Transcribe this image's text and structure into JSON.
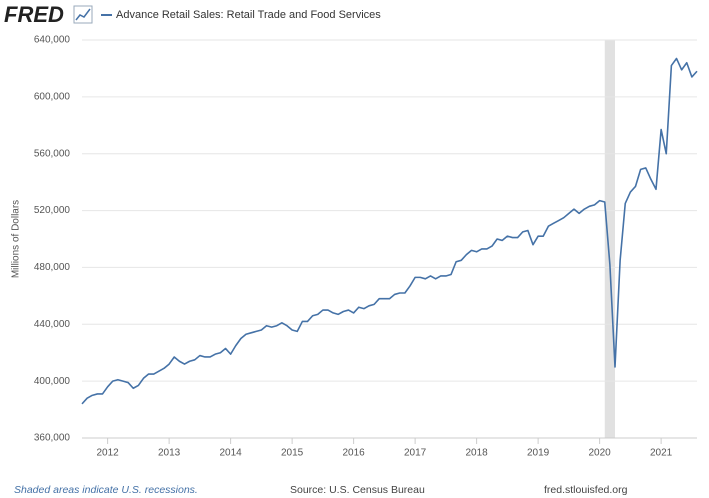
{
  "chart_data": {
    "type": "line",
    "logo": "FRED",
    "ylabel": "Millions of Dollars",
    "recession_note": "Shaded areas indicate U.S. recessions.",
    "source": "Source: U.S. Census Bureau",
    "site": "fred.stlouisfed.org",
    "grid": true,
    "recessions": [
      [
        "2020-02",
        "2020-04"
      ]
    ],
    "recession_color": "#e1e1e1",
    "xlim": [
      "2011-08",
      "2021-08"
    ],
    "xticks": [
      2012,
      2013,
      2014,
      2015,
      2016,
      2017,
      2018,
      2019,
      2020,
      2021
    ],
    "ylim": [
      360000,
      640000
    ],
    "yticks": [
      {
        "value": 360000,
        "label": "360,000"
      },
      {
        "value": 400000,
        "label": "400,000"
      },
      {
        "value": 440000,
        "label": "440,000"
      },
      {
        "value": 480000,
        "label": "480,000"
      },
      {
        "value": 520000,
        "label": "520,000"
      },
      {
        "value": 560000,
        "label": "560,000"
      },
      {
        "value": 600000,
        "label": "600,000"
      },
      {
        "value": 640000,
        "label": "640,000"
      }
    ],
    "x": [
      "2011-08",
      "2011-09",
      "2011-10",
      "2011-11",
      "2011-12",
      "2012-01",
      "2012-02",
      "2012-03",
      "2012-04",
      "2012-05",
      "2012-06",
      "2012-07",
      "2012-08",
      "2012-09",
      "2012-10",
      "2012-11",
      "2012-12",
      "2013-01",
      "2013-02",
      "2013-03",
      "2013-04",
      "2013-05",
      "2013-06",
      "2013-07",
      "2013-08",
      "2013-09",
      "2013-10",
      "2013-11",
      "2013-12",
      "2014-01",
      "2014-02",
      "2014-03",
      "2014-04",
      "2014-05",
      "2014-06",
      "2014-07",
      "2014-08",
      "2014-09",
      "2014-10",
      "2014-11",
      "2014-12",
      "2015-01",
      "2015-02",
      "2015-03",
      "2015-04",
      "2015-05",
      "2015-06",
      "2015-07",
      "2015-08",
      "2015-09",
      "2015-10",
      "2015-11",
      "2015-12",
      "2016-01",
      "2016-02",
      "2016-03",
      "2016-04",
      "2016-05",
      "2016-06",
      "2016-07",
      "2016-08",
      "2016-09",
      "2016-10",
      "2016-11",
      "2016-12",
      "2017-01",
      "2017-02",
      "2017-03",
      "2017-04",
      "2017-05",
      "2017-06",
      "2017-07",
      "2017-08",
      "2017-09",
      "2017-10",
      "2017-11",
      "2017-12",
      "2018-01",
      "2018-02",
      "2018-03",
      "2018-04",
      "2018-05",
      "2018-06",
      "2018-07",
      "2018-08",
      "2018-09",
      "2018-10",
      "2018-11",
      "2018-12",
      "2019-01",
      "2019-02",
      "2019-03",
      "2019-04",
      "2019-05",
      "2019-06",
      "2019-07",
      "2019-08",
      "2019-09",
      "2019-10",
      "2019-11",
      "2019-12",
      "2020-01",
      "2020-02",
      "2020-03",
      "2020-04",
      "2020-05",
      "2020-06",
      "2020-07",
      "2020-08",
      "2020-09",
      "2020-10",
      "2020-11",
      "2020-12",
      "2021-01",
      "2021-02",
      "2021-03",
      "2021-04",
      "2021-05",
      "2021-06",
      "2021-07",
      "2021-08"
    ],
    "series": [
      {
        "name": "Advance Retail Sales: Retail Trade and Food Services",
        "color": "#4572a7",
        "values": [
          384000,
          388000,
          390000,
          391000,
          391000,
          396000,
          400000,
          401000,
          400000,
          399000,
          395000,
          397000,
          402000,
          405000,
          405000,
          407000,
          409000,
          412000,
          417000,
          414000,
          412000,
          414000,
          415000,
          418000,
          417000,
          417000,
          419000,
          420000,
          423000,
          419000,
          425000,
          430000,
          433000,
          434000,
          435000,
          436000,
          439000,
          438000,
          439000,
          441000,
          439000,
          436000,
          435000,
          442000,
          442000,
          446000,
          447000,
          450000,
          450000,
          448000,
          447000,
          449000,
          450000,
          448000,
          452000,
          451000,
          453000,
          454000,
          458000,
          458000,
          458000,
          461000,
          462000,
          462000,
          467000,
          473000,
          473000,
          472000,
          474000,
          472000,
          474000,
          474000,
          475000,
          484000,
          485000,
          489000,
          492000,
          491000,
          493000,
          493000,
          495000,
          500000,
          499000,
          502000,
          501000,
          501000,
          505000,
          506000,
          496000,
          502000,
          502000,
          509000,
          511000,
          513000,
          515000,
          518000,
          521000,
          518000,
          521000,
          523000,
          524000,
          527000,
          526000,
          482000,
          410000,
          485000,
          525000,
          533000,
          537000,
          549000,
          550000,
          542000,
          535000,
          577000,
          560000,
          622000,
          627000,
          619000,
          624000,
          614000,
          618000
        ]
      }
    ]
  }
}
